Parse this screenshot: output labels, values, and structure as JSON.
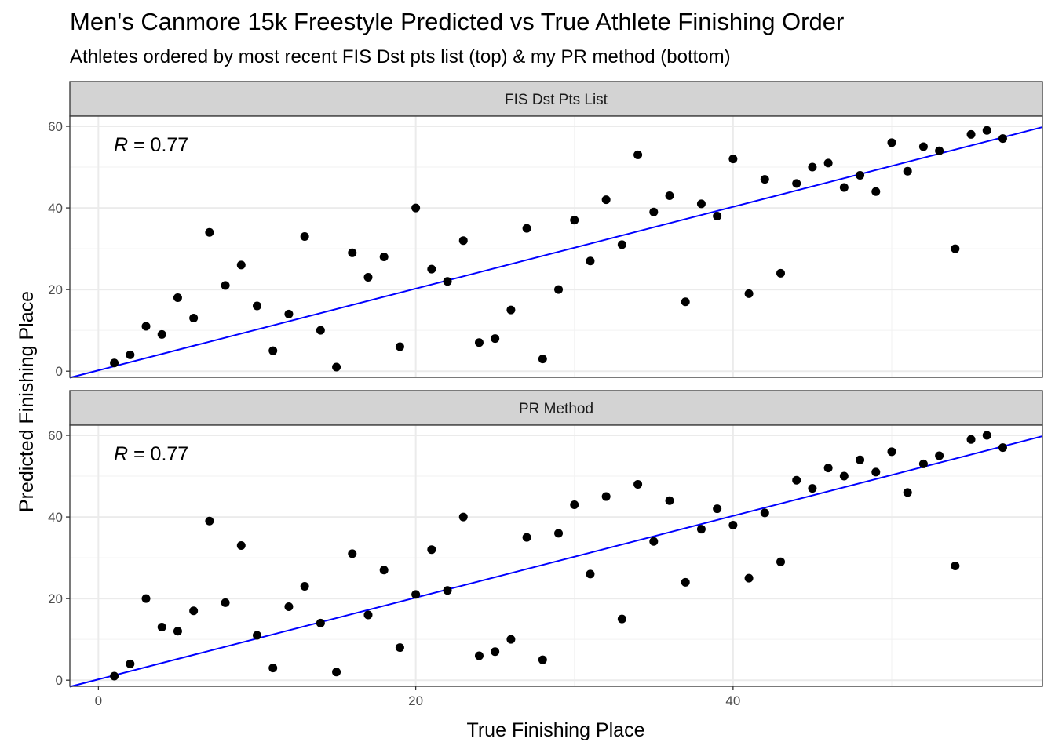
{
  "title": "Men's Canmore 15k Freestyle Predicted vs True Athlete Finishing Order",
  "subtitle": "Athletes ordered by most recent FIS Dst pts list (top) & my PR method (bottom)",
  "chart_data": {
    "type": "scatter",
    "xlabel": "True Finishing Place",
    "ylabel": "Predicted Finishing Place",
    "xlim": [
      -1.8,
      59.5
    ],
    "ylim": [
      -1.5,
      62.5
    ],
    "x_ticks": [
      0,
      20,
      40
    ],
    "y_ticks": [
      0,
      20,
      40,
      60
    ],
    "grid": true,
    "point_color": "#000000",
    "line_color": "#0000ff",
    "strip_color": "#d3d3d3",
    "panels": [
      {
        "strip_label": "FIS Dst Pts List",
        "annotation_var": "R",
        "annotation_value": "= 0.77",
        "fit_line": {
          "x": [
            -1.8,
            59.5
          ],
          "y": [
            -1.6,
            59.8
          ]
        },
        "points": [
          [
            1,
            2
          ],
          [
            2,
            4
          ],
          [
            3,
            11
          ],
          [
            4,
            9
          ],
          [
            5,
            18
          ],
          [
            6,
            13
          ],
          [
            7,
            34
          ],
          [
            8,
            21
          ],
          [
            9,
            26
          ],
          [
            10,
            16
          ],
          [
            11,
            5
          ],
          [
            12,
            14
          ],
          [
            13,
            33
          ],
          [
            14,
            10
          ],
          [
            15,
            1
          ],
          [
            16,
            29
          ],
          [
            17,
            23
          ],
          [
            18,
            28
          ],
          [
            19,
            6
          ],
          [
            20,
            40
          ],
          [
            21,
            25
          ],
          [
            22,
            22
          ],
          [
            23,
            32
          ],
          [
            24,
            7
          ],
          [
            25,
            8
          ],
          [
            26,
            15
          ],
          [
            27,
            35
          ],
          [
            28,
            3
          ],
          [
            29,
            20
          ],
          [
            30,
            37
          ],
          [
            31,
            27
          ],
          [
            32,
            42
          ],
          [
            33,
            31
          ],
          [
            34,
            53
          ],
          [
            35,
            39
          ],
          [
            36,
            43
          ],
          [
            37,
            17
          ],
          [
            38,
            41
          ],
          [
            39,
            38
          ],
          [
            40,
            52
          ],
          [
            41,
            19
          ],
          [
            42,
            47
          ],
          [
            43,
            24
          ],
          [
            44,
            46
          ],
          [
            45,
            50
          ],
          [
            46,
            51
          ],
          [
            47,
            45
          ],
          [
            48,
            48
          ],
          [
            49,
            44
          ],
          [
            50,
            56
          ],
          [
            51,
            49
          ],
          [
            52,
            55
          ],
          [
            53,
            54
          ],
          [
            54,
            30
          ],
          [
            55,
            58
          ],
          [
            56,
            59
          ],
          [
            57,
            57
          ]
        ]
      },
      {
        "strip_label": "PR Method",
        "annotation_var": "R",
        "annotation_value": "= 0.77",
        "fit_line": {
          "x": [
            -1.8,
            59.5
          ],
          "y": [
            -1.6,
            59.8
          ]
        },
        "points": [
          [
            1,
            1
          ],
          [
            2,
            4
          ],
          [
            3,
            20
          ],
          [
            4,
            13
          ],
          [
            5,
            12
          ],
          [
            6,
            17
          ],
          [
            7,
            39
          ],
          [
            8,
            19
          ],
          [
            9,
            33
          ],
          [
            10,
            11
          ],
          [
            11,
            3
          ],
          [
            12,
            18
          ],
          [
            13,
            23
          ],
          [
            14,
            14
          ],
          [
            15,
            2
          ],
          [
            16,
            31
          ],
          [
            17,
            16
          ],
          [
            18,
            27
          ],
          [
            19,
            8
          ],
          [
            20,
            21
          ],
          [
            21,
            32
          ],
          [
            22,
            22
          ],
          [
            23,
            40
          ],
          [
            24,
            6
          ],
          [
            25,
            7
          ],
          [
            26,
            10
          ],
          [
            27,
            35
          ],
          [
            28,
            5
          ],
          [
            29,
            36
          ],
          [
            30,
            43
          ],
          [
            31,
            26
          ],
          [
            32,
            45
          ],
          [
            33,
            15
          ],
          [
            34,
            48
          ],
          [
            35,
            34
          ],
          [
            36,
            44
          ],
          [
            37,
            24
          ],
          [
            38,
            37
          ],
          [
            39,
            42
          ],
          [
            40,
            38
          ],
          [
            41,
            25
          ],
          [
            42,
            41
          ],
          [
            43,
            29
          ],
          [
            44,
            49
          ],
          [
            45,
            47
          ],
          [
            46,
            52
          ],
          [
            47,
            50
          ],
          [
            48,
            54
          ],
          [
            49,
            51
          ],
          [
            50,
            56
          ],
          [
            51,
            46
          ],
          [
            52,
            53
          ],
          [
            53,
            55
          ],
          [
            54,
            28
          ],
          [
            55,
            59
          ],
          [
            56,
            60
          ],
          [
            57,
            57
          ]
        ]
      }
    ]
  }
}
